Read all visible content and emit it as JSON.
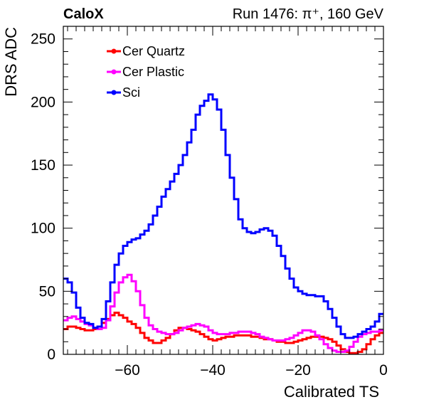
{
  "chart_data": {
    "type": "line",
    "drawstyle": "steps",
    "title_left": "CaloX",
    "title_right": "Run 1476:   π⁺, 160 GeV",
    "xlabel": "Calibrated TS",
    "ylabel": "DRS ADC",
    "xlim": [
      -75,
      0
    ],
    "ylim": [
      0,
      260
    ],
    "x_ticks": [
      -60,
      -40,
      -20,
      0
    ],
    "y_ticks": [
      0,
      50,
      100,
      150,
      200,
      250
    ],
    "legend_position": "top-left",
    "series": [
      {
        "name": "Cer Quartz",
        "color": "#ff0000",
        "x": [
          -75,
          -74,
          -73,
          -72,
          -71,
          -70,
          -69,
          -68,
          -67,
          -66,
          -65,
          -64,
          -63,
          -62,
          -61,
          -60,
          -59,
          -58,
          -57,
          -56,
          -55,
          -54,
          -53,
          -52,
          -51,
          -50,
          -49,
          -48,
          -47,
          -46,
          -45,
          -44,
          -43,
          -42,
          -41,
          -40,
          -39,
          -38,
          -37,
          -36,
          -35,
          -34,
          -33,
          -32,
          -31,
          -30,
          -29,
          -28,
          -27,
          -26,
          -25,
          -24,
          -23,
          -22,
          -21,
          -20,
          -19,
          -18,
          -17,
          -16,
          -15,
          -14,
          -13,
          -12,
          -11,
          -10,
          -9,
          -8,
          -7,
          -6,
          -5,
          -4,
          -3,
          -2,
          -1
        ],
        "values": [
          20,
          22,
          22,
          21,
          20,
          19,
          19,
          20,
          22,
          25,
          28,
          31,
          33,
          31,
          29,
          26,
          24,
          21,
          17,
          13,
          11,
          9,
          9,
          11,
          13,
          16,
          19,
          21,
          21,
          20,
          19,
          18,
          16,
          14,
          12,
          11,
          12,
          13,
          14,
          14,
          15,
          15,
          15,
          15,
          14,
          14,
          13,
          12,
          12,
          11,
          10,
          10,
          9,
          9,
          10,
          11,
          12,
          13,
          14,
          14,
          14,
          13,
          12,
          10,
          7,
          4,
          2,
          1,
          1,
          2,
          4,
          8,
          12,
          15,
          17
        ]
      },
      {
        "name": "Cer Plastic",
        "color": "#ff00ff",
        "x": [
          -75,
          -74,
          -73,
          -72,
          -71,
          -70,
          -69,
          -68,
          -67,
          -66,
          -65,
          -64,
          -63,
          -62,
          -61,
          -60,
          -59,
          -58,
          -57,
          -56,
          -55,
          -54,
          -53,
          -52,
          -51,
          -50,
          -49,
          -48,
          -47,
          -46,
          -45,
          -44,
          -43,
          -42,
          -41,
          -40,
          -39,
          -38,
          -37,
          -36,
          -35,
          -34,
          -33,
          -32,
          -31,
          -30,
          -29,
          -28,
          -27,
          -26,
          -25,
          -24,
          -23,
          -22,
          -21,
          -20,
          -19,
          -18,
          -17,
          -16,
          -15,
          -14,
          -13,
          -12,
          -11,
          -10,
          -9,
          -8,
          -7,
          -6,
          -5,
          -4,
          -3,
          -2,
          -1
        ],
        "values": [
          27,
          29,
          30,
          28,
          26,
          24,
          23,
          21,
          20,
          21,
          27,
          38,
          49,
          57,
          61,
          63,
          58,
          50,
          39,
          29,
          23,
          20,
          18,
          17,
          16,
          16,
          17,
          19,
          21,
          22,
          23,
          24,
          23,
          22,
          19,
          17,
          16,
          16,
          16,
          17,
          17,
          18,
          18,
          18,
          17,
          16,
          14,
          13,
          12,
          11,
          11,
          11,
          12,
          13,
          15,
          17,
          19,
          19,
          18,
          15,
          12,
          8,
          5,
          3,
          2,
          2,
          3,
          6,
          10,
          14,
          16,
          17,
          18,
          18,
          19
        ]
      },
      {
        "name": "Sci",
        "color": "#0000ff",
        "x": [
          -75,
          -74,
          -73,
          -72,
          -71,
          -70,
          -69,
          -68,
          -67,
          -66,
          -65,
          -64,
          -63,
          -62,
          -61,
          -60,
          -59,
          -58,
          -57,
          -56,
          -55,
          -54,
          -53,
          -52,
          -51,
          -50,
          -49,
          -48,
          -47,
          -46,
          -45,
          -44,
          -43,
          -42,
          -41,
          -40,
          -39,
          -38,
          -37,
          -36,
          -35,
          -34,
          -33,
          -32,
          -31,
          -30,
          -29,
          -28,
          -27,
          -26,
          -25,
          -24,
          -23,
          -22,
          -21,
          -20,
          -19,
          -18,
          -17,
          -16,
          -15,
          -14,
          -13,
          -12,
          -11,
          -10,
          -9,
          -8,
          -7,
          -6,
          -5,
          -4,
          -3,
          -2,
          -1
        ],
        "values": [
          60,
          57,
          49,
          37,
          29,
          25,
          24,
          21,
          22,
          28,
          42,
          57,
          71,
          80,
          86,
          89,
          91,
          92,
          95,
          98,
          103,
          110,
          117,
          125,
          131,
          137,
          143,
          150,
          158,
          168,
          178,
          190,
          197,
          201,
          206,
          202,
          194,
          178,
          158,
          140,
          123,
          107,
          100,
          97,
          96,
          97,
          99,
          100,
          98,
          94,
          86,
          78,
          68,
          60,
          53,
          50,
          48,
          47,
          47,
          46,
          46,
          42,
          36,
          29,
          22,
          16,
          13,
          13,
          14,
          16,
          18,
          20,
          22,
          26,
          32
        ]
      }
    ]
  }
}
